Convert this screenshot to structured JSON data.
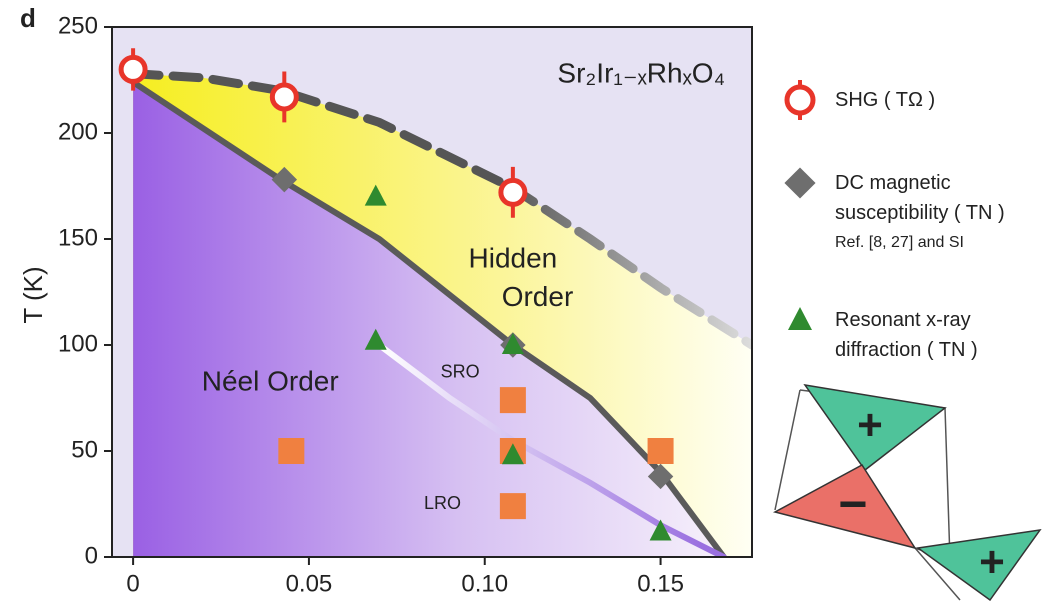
{
  "panel_label": "d",
  "chart_data": {
    "type": "scatter",
    "ylabel": "T (K)",
    "formula": "Sr₂Ir₁₋ₓRhₓO₄",
    "xlim": [
      -0.006,
      0.176
    ],
    "ylim": [
      0,
      250
    ],
    "xticks": [
      0,
      0.05,
      {
        "value": 0.1,
        "label": "0.10"
      },
      0.15
    ],
    "yticks": [
      0,
      50,
      100,
      150,
      200,
      250
    ],
    "annotations": [
      {
        "text": "Hidden",
        "x": 0.108,
        "y": 140
      },
      {
        "text": "Order",
        "x": 0.115,
        "y": 122
      },
      {
        "text": "Néel Order",
        "x": 0.039,
        "y": 82
      },
      {
        "text": "SRO",
        "x": 0.093,
        "y": 87
      },
      {
        "text": "LRO",
        "x": 0.088,
        "y": 25
      }
    ],
    "curves": [
      {
        "color": "#555555",
        "dash": true,
        "x": [
          0,
          0.02,
          0.042,
          0.07,
          0.108,
          0.13,
          0.15,
          0.176
        ],
        "y": [
          228,
          226,
          220,
          205,
          174,
          150,
          127,
          100
        ]
      },
      {
        "color": "#5a5a5a",
        "dash": false,
        "x": [
          0,
          0.042,
          0.07,
          0.108,
          0.13,
          0.15,
          0.168
        ],
        "y": [
          224,
          178,
          150,
          100,
          75,
          40,
          0
        ]
      },
      {
        "color": "#9a70e0",
        "dash": false,
        "x": [
          0.07,
          0.09,
          0.108,
          0.13,
          0.15,
          0.168
        ],
        "y": [
          100,
          75,
          55,
          35,
          15,
          0
        ]
      }
    ],
    "series": [
      {
        "name": "SHG ( TΩ )",
        "color": "#e8352a",
        "marker": "ring",
        "x": [
          0,
          0.043,
          0.108
        ],
        "values": [
          230,
          217,
          172
        ],
        "errors": [
          10,
          12,
          12
        ]
      },
      {
        "name": "DC magnetic susceptibility ( TN )",
        "note": "Ref. [8, 27] and SI",
        "color": "#6e6e6e",
        "marker": "diamond",
        "x": [
          0.043,
          0.108,
          0.15
        ],
        "values": [
          178,
          100,
          38
        ]
      },
      {
        "name": "Resonant x-ray diffraction ( TN )",
        "color": "#2f8a2f",
        "marker": "triangle",
        "x": [
          0.069,
          0.069,
          0.108,
          0.108,
          0.15
        ],
        "values": [
          170,
          102,
          100,
          48,
          12
        ]
      },
      {
        "color": "#f08040",
        "marker": "square",
        "x": [
          0.045,
          0.108,
          0.108,
          0.108,
          0.15
        ],
        "values": [
          50,
          74,
          50,
          24,
          50
        ]
      }
    ]
  },
  "inset": {
    "signs": [
      "+",
      "−",
      "+"
    ]
  }
}
